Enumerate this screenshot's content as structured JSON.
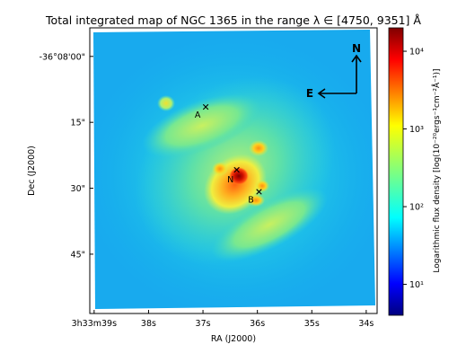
{
  "chart_data": {
    "type": "heatmap",
    "title": "Total integrated map of NGC 1365 in the range λ ∈ [4750, 9351] Å",
    "xlabel": "RA (J2000)",
    "ylabel": "Dec (J2000)",
    "x_ticks": [
      {
        "label": "3h33m39s",
        "value": 39
      },
      {
        "label": "38s",
        "value": 38
      },
      {
        "label": "37s",
        "value": 37
      },
      {
        "label": "36s",
        "value": 36
      },
      {
        "label": "35s",
        "value": 35
      },
      {
        "label": "34s",
        "value": 34
      }
    ],
    "y_ticks": [
      {
        "label": "-36°08'00\"",
        "value": 0
      },
      {
        "label": "15\"",
        "value": 15
      },
      {
        "label": "30\"",
        "value": 30
      },
      {
        "label": "45\"",
        "value": 45
      }
    ],
    "xlim": [
      39.08,
      33.8
    ],
    "ylim": [
      -6.5,
      58.5
    ],
    "colorbar": {
      "label": "Logarithmic flux density [log(10⁻²⁰ergs⁻¹cm⁻²Å⁻¹)]",
      "scale": "log",
      "range": [
        4,
        20000
      ],
      "ticks": [
        {
          "label": "10¹",
          "value": 10
        },
        {
          "label": "10²",
          "value": 100
        },
        {
          "label": "10³",
          "value": 1000
        },
        {
          "label": "10⁴",
          "value": 10000
        }
      ],
      "colormap": "jet"
    },
    "annotations": [
      {
        "label": "A",
        "marker": "x",
        "ra": 36.95,
        "dec": 11.5
      },
      {
        "label": "N",
        "marker": "x",
        "ra": 36.38,
        "dec": 25.8
      },
      {
        "label": "B",
        "marker": "x",
        "ra": 35.97,
        "dec": 30.8
      }
    ],
    "compass": {
      "north_label": "N",
      "east_label": "E"
    }
  }
}
